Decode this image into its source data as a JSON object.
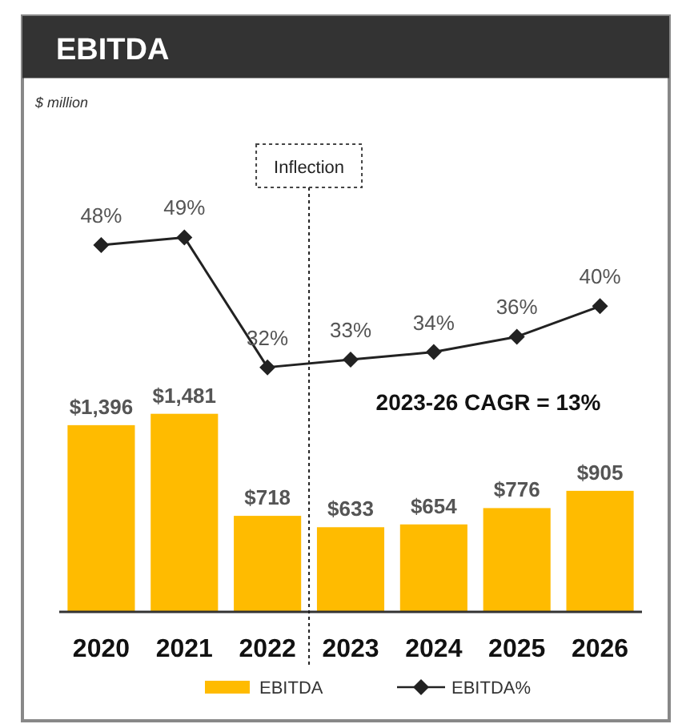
{
  "chart_data": {
    "type": "bar",
    "title": "EBITDA",
    "subtitle": "$ million",
    "categories": [
      "2020",
      "2021",
      "2022",
      "2023",
      "2024",
      "2025",
      "2026"
    ],
    "series": [
      {
        "name": "EBITDA",
        "color": "#ffbb00",
        "values": [
          1396,
          1481,
          718,
          633,
          654,
          776,
          905
        ],
        "value_labels": [
          "$1,396",
          "$1,481",
          "$718",
          "$633",
          "$654",
          "$776",
          "$905"
        ]
      },
      {
        "name": "EBITDA%",
        "type": "line",
        "axis": "y2",
        "color": "#222222",
        "marker": "diamond",
        "values": [
          48,
          49,
          32,
          33,
          34,
          36,
          40
        ],
        "value_labels": [
          "48%",
          "49%",
          "32%",
          "33%",
          "34%",
          "36%",
          "40%"
        ]
      }
    ],
    "ylim": [
      0,
      4000
    ],
    "y2lim": [
      0,
      70
    ],
    "tick_labels": "x",
    "annotations": [
      "Inflection",
      "2023-26 CAGR = 13%"
    ],
    "legend": "bottom"
  }
}
